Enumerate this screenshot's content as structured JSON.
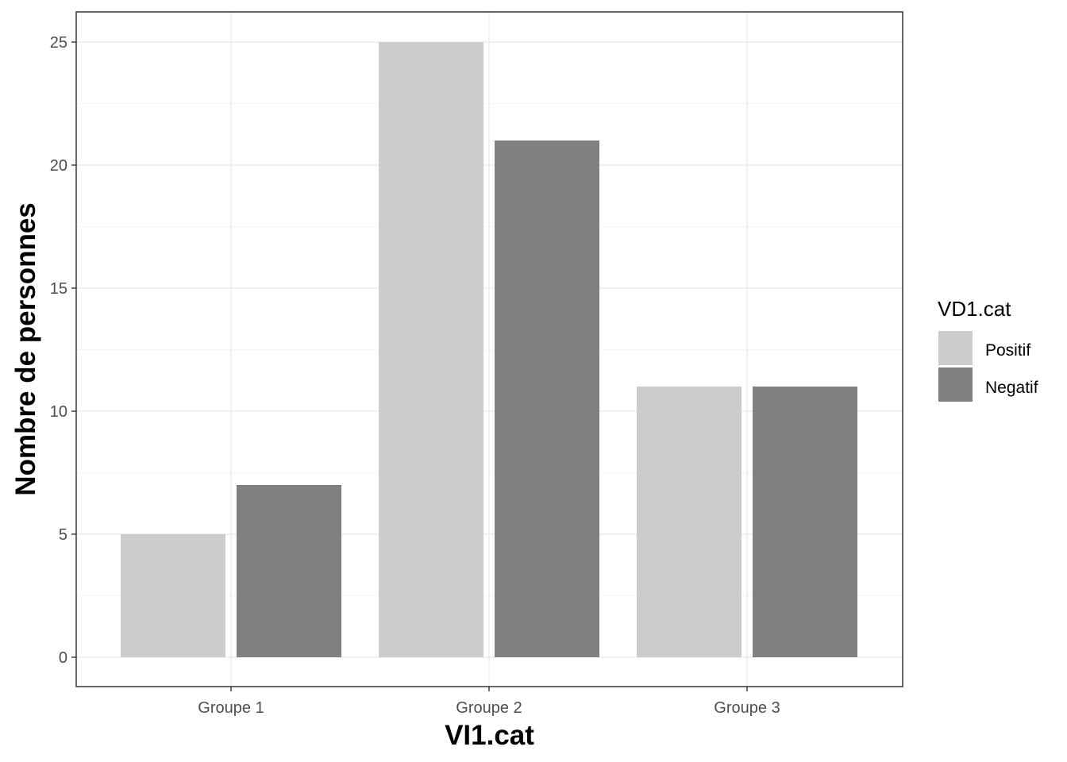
{
  "chart_data": {
    "type": "bar",
    "categories": [
      "Groupe 1",
      "Groupe 2",
      "Groupe 3"
    ],
    "series": [
      {
        "name": "Positif",
        "values": [
          5,
          25,
          11
        ],
        "color": "#cccccc"
      },
      {
        "name": "Negatif",
        "values": [
          7,
          21,
          11
        ],
        "color": "#808080"
      }
    ],
    "xlabel": "VI1.cat",
    "ylabel": "Nombre de personnes",
    "ylim": [
      0,
      26.2
    ],
    "yticks": [
      0,
      5,
      10,
      15,
      20,
      25
    ],
    "legend": {
      "title": "VD1.cat",
      "placement": "right"
    },
    "grid": true
  }
}
